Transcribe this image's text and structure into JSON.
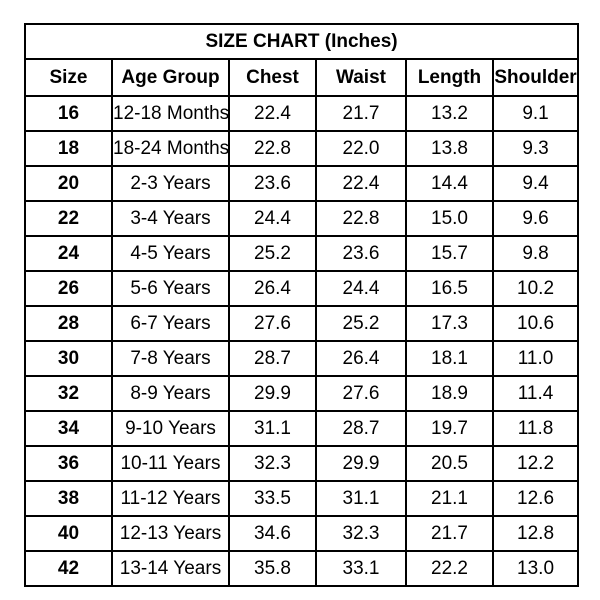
{
  "title": "SIZE CHART (Inches)",
  "headers": [
    "Size",
    "Age Group",
    "Chest",
    "Waist",
    "Length",
    "Shoulder"
  ],
  "rows": [
    [
      "16",
      "12-18 Months",
      "22.4",
      "21.7",
      "13.2",
      "9.1"
    ],
    [
      "18",
      "18-24 Months",
      "22.8",
      "22.0",
      "13.8",
      "9.3"
    ],
    [
      "20",
      "2-3 Years",
      "23.6",
      "22.4",
      "14.4",
      "9.4"
    ],
    [
      "22",
      "3-4 Years",
      "24.4",
      "22.8",
      "15.0",
      "9.6"
    ],
    [
      "24",
      "4-5 Years",
      "25.2",
      "23.6",
      "15.7",
      "9.8"
    ],
    [
      "26",
      "5-6 Years",
      "26.4",
      "24.4",
      "16.5",
      "10.2"
    ],
    [
      "28",
      "6-7 Years",
      "27.6",
      "25.2",
      "17.3",
      "10.6"
    ],
    [
      "30",
      "7-8 Years",
      "28.7",
      "26.4",
      "18.1",
      "11.0"
    ],
    [
      "32",
      "8-9 Years",
      "29.9",
      "27.6",
      "18.9",
      "11.4"
    ],
    [
      "34",
      "9-10 Years",
      "31.1",
      "28.7",
      "19.7",
      "11.8"
    ],
    [
      "36",
      "10-11 Years",
      "32.3",
      "29.9",
      "20.5",
      "12.2"
    ],
    [
      "38",
      "11-12 Years",
      "33.5",
      "31.1",
      "21.1",
      "12.6"
    ],
    [
      "40",
      "12-13 Years",
      "34.6",
      "32.3",
      "21.7",
      "12.8"
    ],
    [
      "42",
      "13-14 Years",
      "35.8",
      "33.1",
      "22.2",
      "13.0"
    ]
  ]
}
